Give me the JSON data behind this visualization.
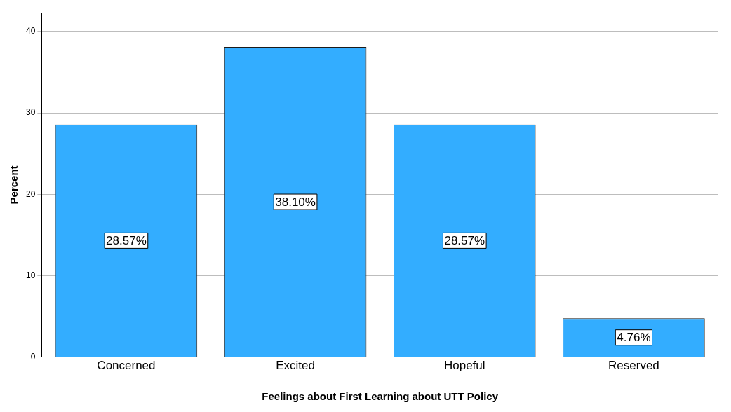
{
  "chart_data": {
    "type": "bar",
    "xlabel": "Feelings about First Learning about UTT Policy",
    "ylabel": "Percent",
    "categories": [
      "Concerned",
      "Excited",
      "Hopeful",
      "Reserved"
    ],
    "values": [
      28.57,
      38.1,
      28.57,
      4.76
    ],
    "value_labels": [
      "28.57%",
      "38.10%",
      "28.57%",
      "4.76%"
    ],
    "color": "#33adff",
    "ylim": [
      0,
      42.3
    ],
    "yticks": [
      0,
      10,
      20,
      30,
      40
    ],
    "grid": "y",
    "legend": false
  }
}
